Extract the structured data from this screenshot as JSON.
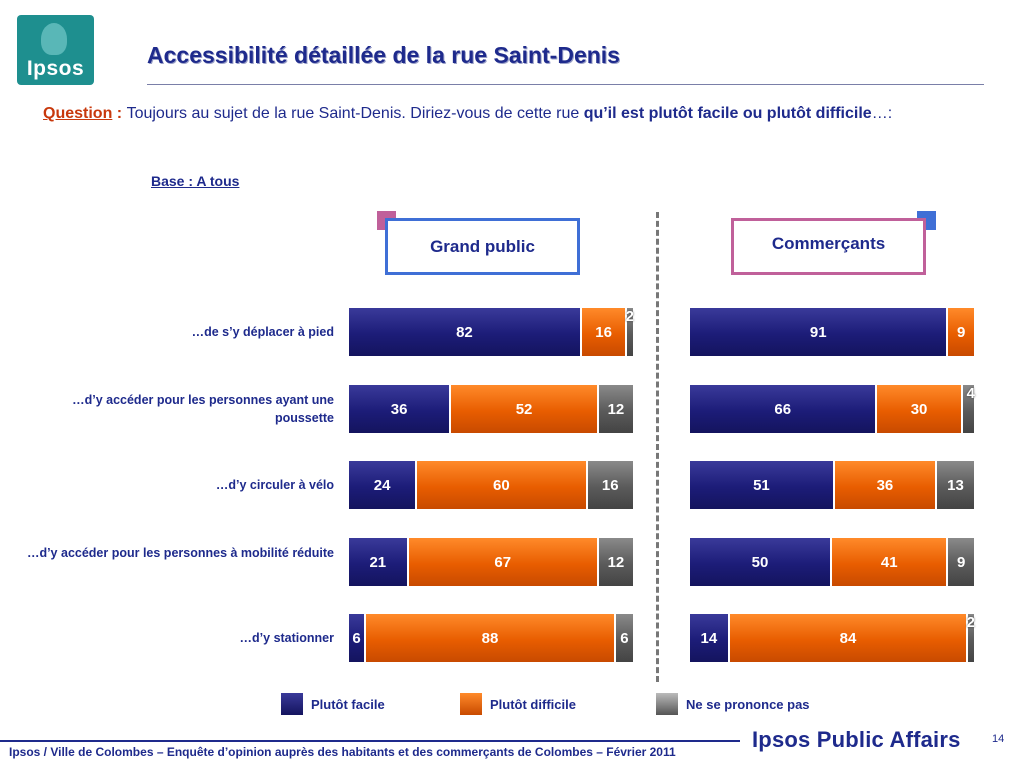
{
  "logo": {
    "text": "Ipsos"
  },
  "title": "Accessibilité détaillée de la rue Saint-Denis",
  "question": {
    "label": "Question",
    "colon": " : ",
    "text": "Toujours au sujet de la rue Saint-Denis. Diriez-vous de cette rue ",
    "bold": "qu’il est plutôt facile ou plutôt difficile",
    "end": "…:"
  },
  "base": "Base : A tous",
  "colors": {
    "plutot_facile": "#1c1c78",
    "plutot_difficile": "#e85d00",
    "ne_se_prononce_pas": "#5a5a5a",
    "grand_public_frame": "#3f6fd6",
    "commercants_frame": "#c0609a"
  },
  "chart_data": {
    "type": "bar",
    "orientation": "horizontal",
    "stacked": true,
    "xlim": [
      0,
      100
    ],
    "categories": [
      "…de s’y déplacer à pied",
      "…d’y accéder pour les personnes ayant une poussette",
      "…d’y circuler à vélo",
      "…d’y accéder pour les personnes à mobilité réduite",
      "…d’y stationner"
    ],
    "series_names": [
      "Plutôt facile",
      "Plutôt difficile",
      "Ne se prononce pas"
    ],
    "panels": [
      {
        "name": "Grand public",
        "values": [
          [
            82,
            16,
            2
          ],
          [
            36,
            52,
            12
          ],
          [
            24,
            60,
            16
          ],
          [
            21,
            67,
            12
          ],
          [
            6,
            88,
            6
          ]
        ]
      },
      {
        "name": "Commerçants",
        "values": [
          [
            91,
            9,
            0
          ],
          [
            66,
            30,
            4
          ],
          [
            51,
            36,
            13
          ],
          [
            50,
            41,
            9
          ],
          [
            14,
            84,
            2
          ]
        ]
      }
    ],
    "legend": [
      "Plutôt facile",
      "Plutôt difficile",
      "Ne se prononce pas"
    ],
    "legend_position": "bottom"
  },
  "footer": "Ipsos / Ville de Colombes – Enquête d’opinion auprès des habitants et des commerçants de Colombes – Février 2011",
  "brand": "Ipsos Public Affairs",
  "page_number": "14"
}
